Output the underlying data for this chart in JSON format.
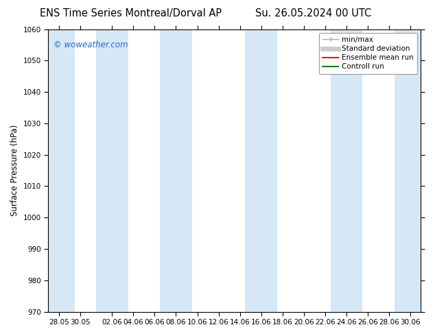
{
  "title_left": "ENS Time Series Montreal/Dorval AP",
  "title_right": "Su. 26.05.2024 00 UTC",
  "ylabel": "Surface Pressure (hPa)",
  "ylim": [
    970,
    1060
  ],
  "yticks": [
    970,
    980,
    990,
    1000,
    1010,
    1020,
    1030,
    1040,
    1050,
    1060
  ],
  "xtick_labels": [
    "28.05",
    "30.05",
    "02.06",
    "04.06",
    "06.06",
    "08.06",
    "10.06",
    "12.06",
    "14.06",
    "16.06",
    "18.06",
    "20.06",
    "22.06",
    "24.06",
    "26.06",
    "28.06",
    "30.06"
  ],
  "watermark": "© woweather.com",
  "watermark_color": "#2266cc",
  "background_color": "#ffffff",
  "plot_bg_color": "#ffffff",
  "band_color": "#d6e8f5",
  "legend_entries": [
    {
      "label": "min/max",
      "color": "#aaaaaa",
      "lw": 1
    },
    {
      "label": "Standard deviation",
      "color": "#cccccc",
      "lw": 5
    },
    {
      "label": "Ensemble mean run",
      "color": "#ff0000",
      "lw": 1.5
    },
    {
      "label": "Controll run",
      "color": "#008000",
      "lw": 1.5
    }
  ],
  "title_fontsize": 10.5,
  "tick_fontsize": 7.5,
  "ylabel_fontsize": 8.5,
  "legend_fontsize": 7.5,
  "watermark_fontsize": 8.5
}
